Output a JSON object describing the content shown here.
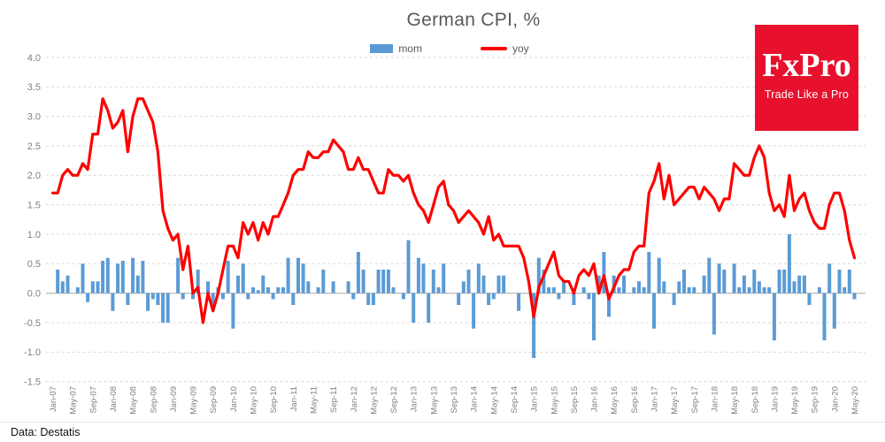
{
  "header": {
    "title": "German CPI, %"
  },
  "footer": {
    "source": "Data: Destatis"
  },
  "logo": {
    "brand": "FxPro",
    "tagline": "Trade Like a Pro",
    "bg_color": "#e8112d",
    "text_color": "#ffffff"
  },
  "colors": {
    "bar_blue": "#5b9bd5",
    "line_red": "#fe0000",
    "title_gray": "#595959",
    "axis_label_gray": "#7f7f7f",
    "gridline_gray": "#d9d9d9",
    "zero_axis_gray": "#bfbfbf"
  },
  "chart_data": {
    "type": "combo",
    "title": "German CPI, %",
    "xlabel": "",
    "ylabel": "%",
    "ylim": [
      -1.5,
      4.0
    ],
    "grid": "horizontal-dashed",
    "legend_position": "top",
    "yticks": [
      "4.0",
      "3.5",
      "3.0",
      "2.5",
      "2.0",
      "1.5",
      "1.0",
      "0.5",
      "0.0",
      "-0.5",
      "-1.0",
      "-1.5"
    ],
    "x_tick_step": 4,
    "x_tick_labels": [
      "Jan-07",
      "May-07",
      "Sep-07",
      "Jan-08",
      "May-08",
      "Sep-08",
      "Jan-09",
      "May-09",
      "Sep-09",
      "Jan-10",
      "May-10",
      "Sep-10",
      "Jan-11",
      "May-11",
      "Sep-11",
      "Jan-12",
      "May-12",
      "Sep-12",
      "Jan-13",
      "May-13",
      "Sep-13",
      "Jan-14",
      "May-14",
      "Sep-14",
      "Jan-15",
      "May-15",
      "Sep-15",
      "Jan-16",
      "May-16",
      "Sep-16",
      "Jan-17",
      "May-17",
      "Sep-17",
      "Jan-18",
      "May-18",
      "Sep-18",
      "Jan-19",
      "May-19",
      "Sep-19",
      "Jan-20",
      "May-20"
    ],
    "x": [
      "Jan-07",
      "Feb-07",
      "Mar-07",
      "Apr-07",
      "May-07",
      "Jun-07",
      "Jul-07",
      "Aug-07",
      "Sep-07",
      "Oct-07",
      "Nov-07",
      "Dec-07",
      "Jan-08",
      "Feb-08",
      "Mar-08",
      "Apr-08",
      "May-08",
      "Jun-08",
      "Jul-08",
      "Aug-08",
      "Sep-08",
      "Oct-08",
      "Nov-08",
      "Dec-08",
      "Jan-09",
      "Feb-09",
      "Mar-09",
      "Apr-09",
      "May-09",
      "Jun-09",
      "Jul-09",
      "Aug-09",
      "Sep-09",
      "Oct-09",
      "Nov-09",
      "Dec-09",
      "Jan-10",
      "Feb-10",
      "Mar-10",
      "Apr-10",
      "May-10",
      "Jun-10",
      "Jul-10",
      "Aug-10",
      "Sep-10",
      "Oct-10",
      "Nov-10",
      "Dec-10",
      "Jan-11",
      "Feb-11",
      "Mar-11",
      "Apr-11",
      "May-11",
      "Jun-11",
      "Jul-11",
      "Aug-11",
      "Sep-11",
      "Oct-11",
      "Nov-11",
      "Dec-11",
      "Jan-12",
      "Feb-12",
      "Mar-12",
      "Apr-12",
      "May-12",
      "Jun-12",
      "Jul-12",
      "Aug-12",
      "Sep-12",
      "Oct-12",
      "Nov-12",
      "Dec-12",
      "Jan-13",
      "Feb-13",
      "Mar-13",
      "Apr-13",
      "May-13",
      "Jun-13",
      "Jul-13",
      "Aug-13",
      "Sep-13",
      "Oct-13",
      "Nov-13",
      "Dec-13",
      "Jan-14",
      "Feb-14",
      "Mar-14",
      "Apr-14",
      "May-14",
      "Jun-14",
      "Jul-14",
      "Aug-14",
      "Sep-14",
      "Oct-14",
      "Nov-14",
      "Dec-14",
      "Jan-15",
      "Feb-15",
      "Mar-15",
      "Apr-15",
      "May-15",
      "Jun-15",
      "Jul-15",
      "Aug-15",
      "Sep-15",
      "Oct-15",
      "Nov-15",
      "Dec-15",
      "Jan-16",
      "Feb-16",
      "Mar-16",
      "Apr-16",
      "May-16",
      "Jun-16",
      "Jul-16",
      "Aug-16",
      "Sep-16",
      "Oct-16",
      "Nov-16",
      "Dec-16",
      "Jan-17",
      "Feb-17",
      "Mar-17",
      "Apr-17",
      "May-17",
      "Jun-17",
      "Jul-17",
      "Aug-17",
      "Sep-17",
      "Oct-17",
      "Nov-17",
      "Dec-17",
      "Jan-18",
      "Feb-18",
      "Mar-18",
      "Apr-18",
      "May-18",
      "Jun-18",
      "Jul-18",
      "Aug-18",
      "Sep-18",
      "Oct-18",
      "Nov-18",
      "Dec-18",
      "Jan-19",
      "Feb-19",
      "Mar-19",
      "Apr-19",
      "May-19",
      "Jun-19",
      "Jul-19",
      "Aug-19",
      "Sep-19",
      "Oct-19",
      "Nov-19",
      "Dec-19",
      "Jan-20",
      "Feb-20",
      "Mar-20",
      "Apr-20",
      "May-20"
    ],
    "series": [
      {
        "name": "mom",
        "type": "bar",
        "color": "#5b9bd5",
        "values": [
          0.0,
          0.4,
          0.2,
          0.3,
          0.0,
          0.1,
          0.5,
          -0.15,
          0.2,
          0.2,
          0.55,
          0.6,
          -0.3,
          0.5,
          0.55,
          -0.2,
          0.6,
          0.3,
          0.55,
          -0.3,
          -0.1,
          -0.2,
          -0.5,
          -0.5,
          0.0,
          0.6,
          -0.1,
          0.0,
          -0.1,
          0.4,
          0.0,
          0.2,
          -0.3,
          0.1,
          -0.1,
          0.55,
          -0.6,
          0.3,
          0.5,
          -0.1,
          0.1,
          0.05,
          0.3,
          0.1,
          -0.1,
          0.1,
          0.1,
          0.6,
          -0.2,
          0.6,
          0.5,
          0.2,
          0.0,
          0.1,
          0.4,
          0.0,
          0.2,
          0.0,
          0.0,
          0.2,
          -0.1,
          0.7,
          0.4,
          -0.2,
          -0.2,
          0.4,
          0.4,
          0.4,
          0.1,
          0.0,
          -0.1,
          0.9,
          -0.5,
          0.6,
          0.5,
          -0.5,
          0.4,
          0.1,
          0.5,
          0.0,
          0.0,
          -0.2,
          0.2,
          0.4,
          -0.6,
          0.5,
          0.3,
          -0.2,
          -0.1,
          0.3,
          0.3,
          0.0,
          0.0,
          -0.3,
          0.0,
          0.0,
          -1.1,
          0.6,
          0.4,
          0.1,
          0.1,
          -0.1,
          0.2,
          0.0,
          -0.2,
          0.0,
          0.1,
          -0.1,
          -0.8,
          0.3,
          0.7,
          -0.4,
          0.3,
          0.1,
          0.3,
          0.0,
          0.1,
          0.2,
          0.1,
          0.7,
          -0.6,
          0.6,
          0.2,
          0.0,
          -0.2,
          0.2,
          0.4,
          0.1,
          0.1,
          0.0,
          0.3,
          0.6,
          -0.7,
          0.5,
          0.4,
          0.0,
          0.5,
          0.1,
          0.3,
          0.1,
          0.4,
          0.2,
          0.1,
          0.1,
          -0.8,
          0.4,
          0.4,
          1.0,
          0.2,
          0.3,
          0.3,
          -0.2,
          0.0,
          0.1,
          -0.8,
          0.5,
          -0.6,
          0.4,
          0.1,
          0.4,
          -0.1
        ]
      },
      {
        "name": "yoy",
        "type": "line",
        "color": "#fe0000",
        "values": [
          1.7,
          1.7,
          2.0,
          2.1,
          2.0,
          2.0,
          2.2,
          2.1,
          2.7,
          2.7,
          3.3,
          3.1,
          2.8,
          2.9,
          3.1,
          2.4,
          3.0,
          3.3,
          3.3,
          3.1,
          2.9,
          2.4,
          1.4,
          1.1,
          0.9,
          1.0,
          0.4,
          0.8,
          0.0,
          0.1,
          -0.5,
          0.0,
          -0.3,
          0.0,
          0.4,
          0.8,
          0.8,
          0.6,
          1.2,
          1.0,
          1.2,
          0.9,
          1.2,
          1.0,
          1.3,
          1.3,
          1.5,
          1.7,
          2.0,
          2.1,
          2.1,
          2.4,
          2.3,
          2.3,
          2.4,
          2.4,
          2.6,
          2.5,
          2.4,
          2.1,
          2.1,
          2.3,
          2.1,
          2.1,
          1.9,
          1.7,
          1.7,
          2.1,
          2.0,
          2.0,
          1.9,
          2.0,
          1.7,
          1.5,
          1.4,
          1.2,
          1.5,
          1.8,
          1.9,
          1.5,
          1.4,
          1.2,
          1.3,
          1.4,
          1.3,
          1.2,
          1.0,
          1.3,
          0.9,
          1.0,
          0.8,
          0.8,
          0.8,
          0.8,
          0.6,
          0.2,
          -0.4,
          0.1,
          0.3,
          0.5,
          0.7,
          0.3,
          0.2,
          0.2,
          0.0,
          0.3,
          0.4,
          0.3,
          0.5,
          0.0,
          0.3,
          -0.1,
          0.1,
          0.3,
          0.4,
          0.4,
          0.7,
          0.8,
          0.8,
          1.7,
          1.9,
          2.2,
          1.6,
          2.0,
          1.5,
          1.6,
          1.7,
          1.8,
          1.8,
          1.6,
          1.8,
          1.7,
          1.6,
          1.4,
          1.6,
          1.6,
          2.2,
          2.1,
          2.0,
          2.0,
          2.3,
          2.5,
          2.3,
          1.7,
          1.4,
          1.5,
          1.3,
          2.0,
          1.4,
          1.6,
          1.7,
          1.4,
          1.2,
          1.1,
          1.1,
          1.5,
          1.7,
          1.7,
          1.4,
          0.9,
          0.6
        ]
      }
    ]
  }
}
